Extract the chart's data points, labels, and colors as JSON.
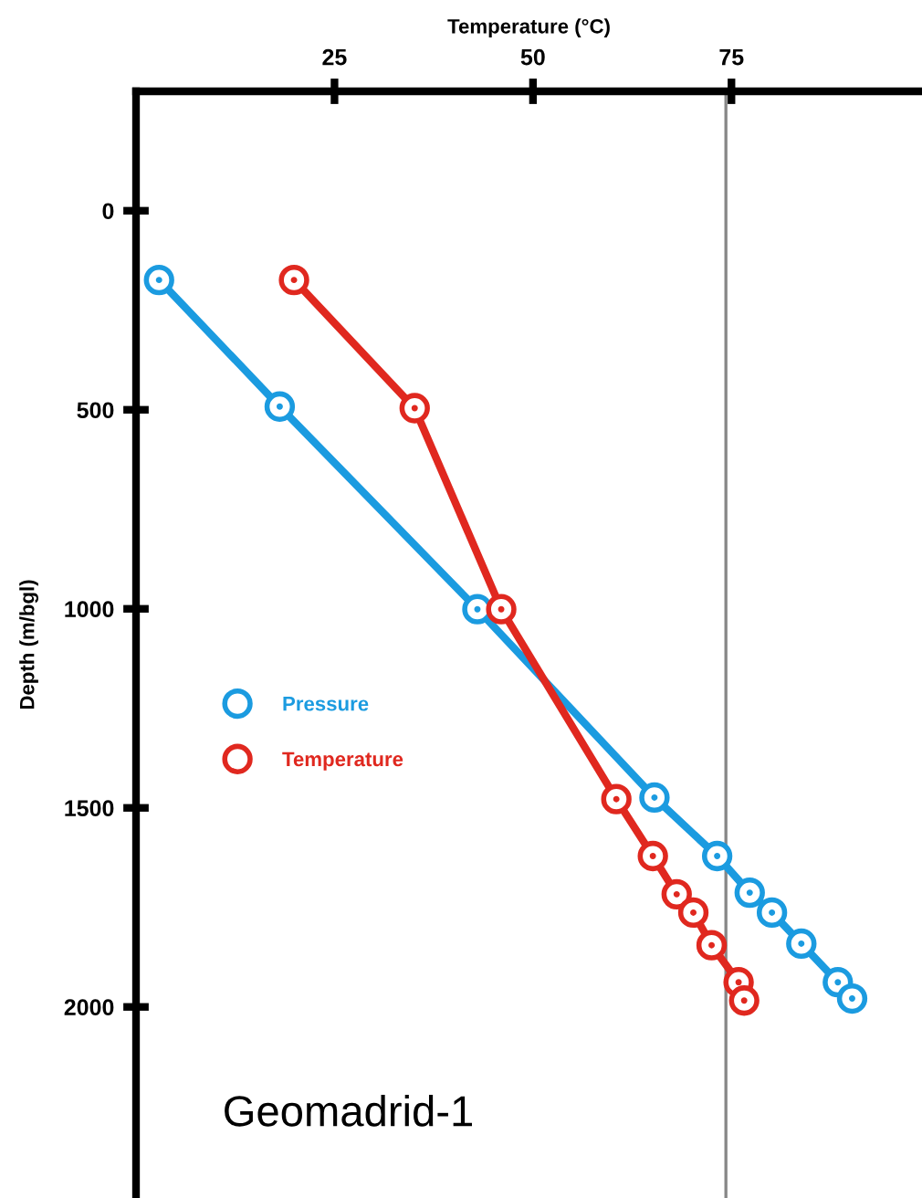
{
  "chart_data": {
    "type": "line",
    "xlabel": "Temperature (°C)",
    "ylabel": "Depth (m/bgl)",
    "xlim": [
      0,
      99
    ],
    "xticks": [
      25,
      50,
      75
    ],
    "ylim": [
      2480,
      -300
    ],
    "yticks": [
      0,
      500,
      1000,
      1500,
      2000
    ],
    "marker": "circle",
    "legend": "left",
    "grid": false,
    "series": [
      {
        "name": "Pressure",
        "color": "#1b9be0",
        "x": [
          2.9,
          18.1,
          43.0,
          65.3,
          73.2,
          77.3,
          80.1,
          83.8,
          88.4,
          90.2
        ],
        "values": [
          174,
          492,
          1001,
          1474,
          1621,
          1713,
          1763,
          1841,
          1938,
          1979
        ]
      },
      {
        "name": "Temperature",
        "color": "#e0281f",
        "x": [
          19.9,
          35.1,
          46.0,
          60.5,
          65.1,
          68.1,
          70.2,
          72.5,
          75.9,
          76.6
        ],
        "values": [
          174,
          496,
          1001,
          1478,
          1621,
          1717,
          1763,
          1845,
          1938,
          1984
        ]
      }
    ],
    "ref_lines": [
      {
        "axis": "x",
        "value": 74.3,
        "color": "#888888"
      }
    ],
    "annotations": [
      "Geomadrid-1"
    ]
  }
}
